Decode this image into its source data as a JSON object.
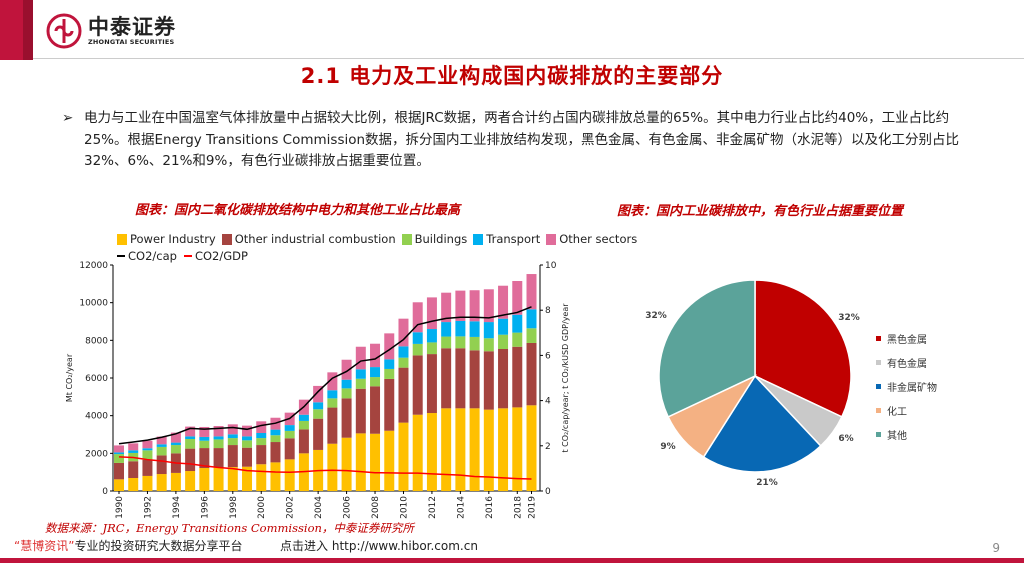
{
  "header": {
    "logo_cn": "中泰证券",
    "logo_en": "ZHONGTAI SECURITIES",
    "brand_color": "#c0143c"
  },
  "title": "2.1 电力及工业构成国内碳排放的主要部分",
  "bullet": {
    "icon": "arrow-right-icon",
    "text": "电力与工业在中国温室气体排放量中占据较大比例，根据JRC数据，两者合计约占国内碳排放总量的65%。其中电力行业占比约40%，工业占比约25%。根据Energy Transitions Commission数据，拆分国内工业排放结构发现，黑色金属、有色金属、非金属矿物（水泥等）以及化工分别占比32%、6%、21%和9%，有色行业碳排放占据重要位置。"
  },
  "left_caption": "图表：国内二氧化碳排放结构中电力和其他工业占比最高",
  "right_caption": "图表：国内工业碳排放中，有色行业占据重要位置",
  "source": "数据来源：JRC，Energy Transitions Commission，中泰证券研究所",
  "watermark": {
    "quote_open": "“",
    "brand": "慧博资讯",
    "quote_close": "”",
    "line1": "专业的投资研究大数据分享平台",
    "line2": "点击进入",
    "url": "http://www.hibor.com.cn"
  },
  "page_number": "9",
  "chart_data": [
    {
      "type": "bar",
      "stacked": true,
      "categories": [
        1990,
        1991,
        1992,
        1993,
        1994,
        1995,
        1996,
        1997,
        1998,
        1999,
        2000,
        2001,
        2002,
        2003,
        2004,
        2005,
        2006,
        2007,
        2008,
        2009,
        2010,
        2011,
        2012,
        2013,
        2014,
        2015,
        2016,
        2017,
        2018,
        2019
      ],
      "tick_labels": [
        "1990",
        "1992",
        "1994",
        "1996",
        "1998",
        "2000",
        "2002",
        "2004",
        "2006",
        "2008",
        "2010",
        "2012",
        "2014",
        "2016",
        "2018",
        "2019"
      ],
      "ylabel": "Mt CO₂/year",
      "ylim": [
        0,
        12000
      ],
      "yticks": [
        "0",
        "2000",
        "4000",
        "6000",
        "8000",
        "10000",
        "12000"
      ],
      "y2label": "t CO₂/cap/year; t CO₂/kUSD GDP/year",
      "y2lim": [
        0,
        10
      ],
      "y2ticks": [
        "0",
        "2",
        "4",
        "6",
        "8",
        "10"
      ],
      "legend_position": "top",
      "series": [
        {
          "name": "Power Industry",
          "color": "#ffc000",
          "values": [
            620,
            690,
            800,
            900,
            960,
            1060,
            1220,
            1240,
            1270,
            1290,
            1420,
            1520,
            1680,
            2000,
            2180,
            2510,
            2830,
            3060,
            3040,
            3200,
            3630,
            4050,
            4140,
            4390,
            4390,
            4390,
            4320,
            4390,
            4440,
            4550
          ]
        },
        {
          "name": "Other industrial combustion",
          "color": "#a5443f",
          "values": [
            870,
            890,
            850,
            990,
            1040,
            1190,
            1060,
            1040,
            1170,
            1010,
            1020,
            1080,
            1120,
            1270,
            1660,
            1920,
            2090,
            2370,
            2520,
            2750,
            2920,
            3150,
            3130,
            3190,
            3190,
            3080,
            3100,
            3150,
            3220,
            3310
          ]
        },
        {
          "name": "Buildings",
          "color": "#92d050",
          "values": [
            470,
            440,
            510,
            450,
            440,
            510,
            390,
            460,
            370,
            390,
            370,
            360,
            390,
            450,
            500,
            490,
            530,
            530,
            490,
            530,
            530,
            610,
            620,
            620,
            630,
            710,
            690,
            760,
            750,
            780
          ]
        },
        {
          "name": "Transport",
          "color": "#00b0f0",
          "values": [
            90,
            140,
            110,
            140,
            130,
            140,
            200,
            160,
            200,
            210,
            270,
            300,
            310,
            330,
            370,
            430,
            460,
            500,
            530,
            510,
            600,
            620,
            710,
            770,
            820,
            830,
            860,
            850,
            950,
            1010
          ]
        },
        {
          "name": "Other sectors",
          "color": "#e06c9a",
          "values": [
            370,
            370,
            400,
            410,
            530,
            520,
            530,
            550,
            530,
            570,
            620,
            630,
            660,
            800,
            870,
            950,
            1060,
            1200,
            1240,
            1380,
            1470,
            1590,
            1680,
            1560,
            1610,
            1650,
            1740,
            1750,
            1790,
            1870
          ]
        }
      ],
      "lines": [
        {
          "name": "CO2/cap",
          "color": "#000000",
          "axis": "right",
          "values": [
            2.09,
            2.17,
            2.25,
            2.38,
            2.53,
            2.77,
            2.74,
            2.77,
            2.81,
            2.73,
            2.9,
            3.0,
            3.21,
            3.73,
            4.4,
            4.99,
            5.29,
            5.75,
            5.84,
            6.25,
            6.7,
            7.36,
            7.51,
            7.64,
            7.69,
            7.69,
            7.66,
            7.78,
            7.9,
            8.15
          ]
        },
        {
          "name": "CO2/GDP",
          "color": "#ff0000",
          "axis": "right",
          "values": [
            1.51,
            1.48,
            1.39,
            1.33,
            1.24,
            1.2,
            1.11,
            1.04,
            0.99,
            0.9,
            0.87,
            0.84,
            0.83,
            0.86,
            0.9,
            0.92,
            0.9,
            0.86,
            0.81,
            0.8,
            0.79,
            0.79,
            0.76,
            0.73,
            0.7,
            0.64,
            0.62,
            0.58,
            0.55,
            0.53
          ]
        }
      ]
    },
    {
      "type": "pie",
      "legend_position": "right",
      "slices": [
        {
          "label": "黑色金属",
          "value": 32,
          "display": "32%",
          "color": "#c00000"
        },
        {
          "label": "有色金属",
          "value": 6,
          "display": "6%",
          "color": "#c9c9c9"
        },
        {
          "label": "非金属矿物",
          "value": 21,
          "display": "21%",
          "color": "#0868b4"
        },
        {
          "label": "化工",
          "value": 9,
          "display": "9%",
          "color": "#f4b183"
        },
        {
          "label": "其他",
          "value": 32,
          "display": "32%",
          "color": "#5ba39a"
        }
      ]
    }
  ]
}
